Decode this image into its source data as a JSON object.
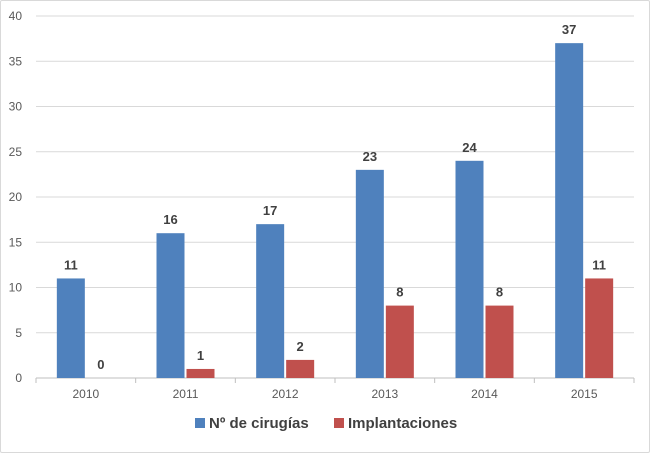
{
  "chart_data": {
    "type": "bar",
    "categories": [
      "2010",
      "2011",
      "2012",
      "2013",
      "2014",
      "2015"
    ],
    "series": [
      {
        "name": "Nº de cirugías",
        "values": [
          11,
          16,
          17,
          23,
          24,
          37
        ],
        "color": "#4f81bd"
      },
      {
        "name": "Implantaciones",
        "values": [
          0,
          1,
          2,
          8,
          8,
          11
        ],
        "color": "#c0504d"
      }
    ],
    "ylim": [
      0,
      40
    ],
    "yticks": [
      0,
      5,
      10,
      15,
      20,
      25,
      30,
      35,
      40
    ],
    "grid": true,
    "legend_position": "bottom",
    "data_labels": true
  }
}
